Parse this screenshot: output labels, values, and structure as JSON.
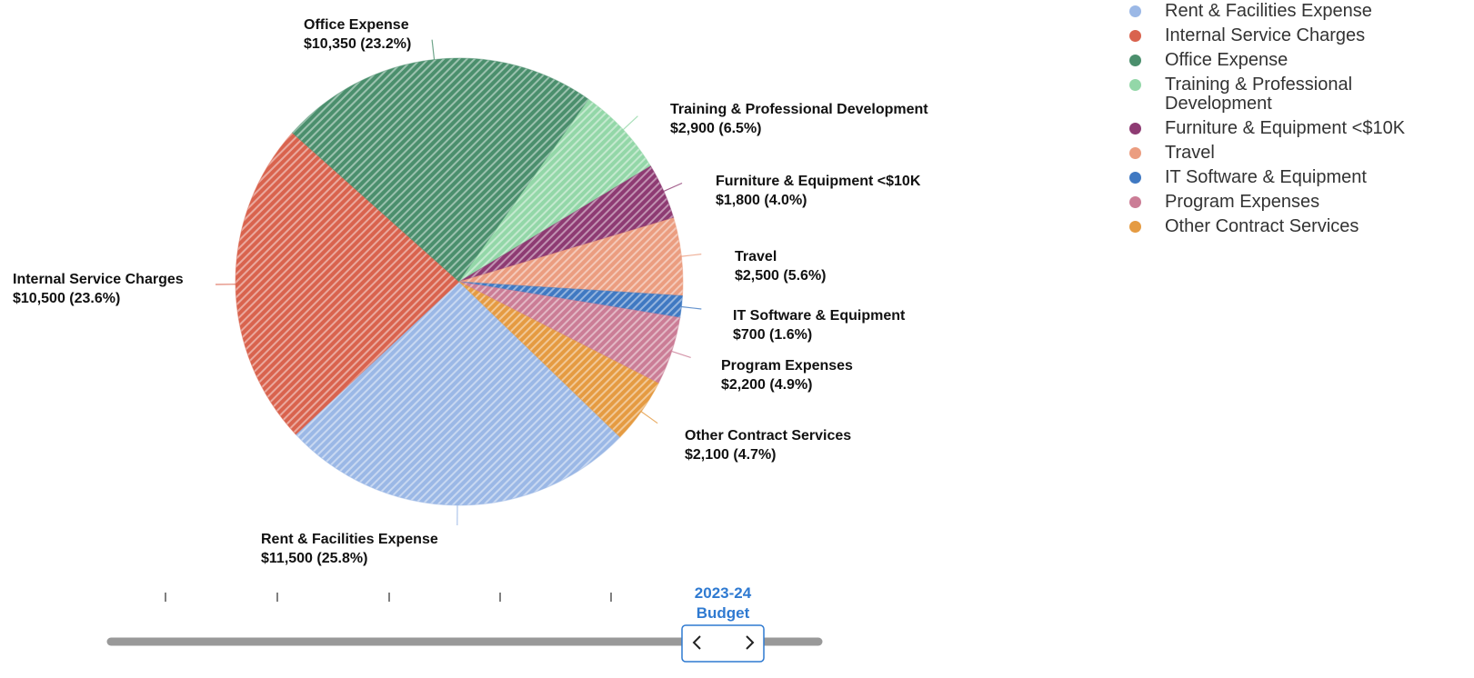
{
  "chart_data": {
    "type": "pie",
    "categories": [
      "Rent & Facilities Expense",
      "Internal Service Charges",
      "Office Expense",
      "Training & Professional Development",
      "Furniture & Equipment <$10K",
      "Travel",
      "IT Software & Equipment",
      "Program Expenses",
      "Other Contract Services"
    ],
    "values": [
      11500,
      10500,
      10350,
      2900,
      1800,
      2500,
      700,
      2200,
      2100
    ],
    "value_labels": [
      "$11,500 (25.8%)",
      "$10,500 (23.6%)",
      "$10,350 (23.2%)",
      "$2,900 (6.5%)",
      "$1,800 (4.0%)",
      "$2,500 (5.6%)",
      "$700 (1.6%)",
      "$2,200 (4.9%)",
      "$2,100 (4.7%)"
    ],
    "colors": [
      "#9bb8e6",
      "#d9634e",
      "#4b8f6d",
      "#93d7a8",
      "#8e3b73",
      "#eb9d80",
      "#4079c2",
      "#cb7d96",
      "#e59b42"
    ],
    "legend": "top-right"
  },
  "slider": {
    "label": "2023-24 Budget"
  }
}
